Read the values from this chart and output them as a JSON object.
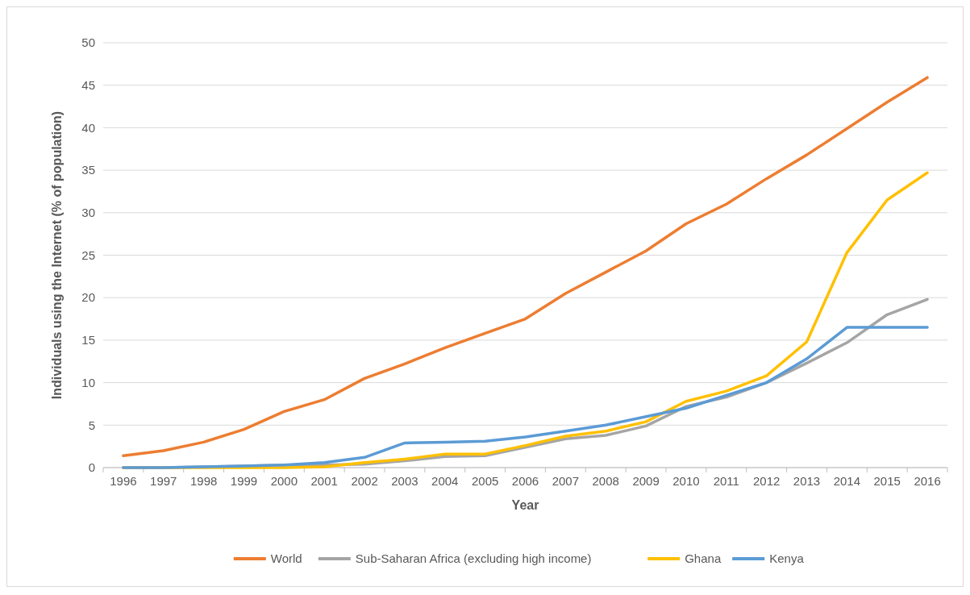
{
  "chart_data": {
    "type": "line",
    "xlabel": "Year",
    "ylabel": "Individuals using the Internet (% of population)",
    "categories": [
      "1996",
      "1997",
      "1998",
      "1999",
      "2000",
      "2001",
      "2002",
      "2003",
      "2004",
      "2005",
      "2006",
      "2007",
      "2008",
      "2009",
      "2010",
      "2011",
      "2012",
      "2013",
      "2014",
      "2015",
      "2016"
    ],
    "series": [
      {
        "name": "World",
        "color": "#ed7d31",
        "values": [
          1.4,
          2.0,
          3.0,
          4.5,
          6.6,
          8.0,
          10.5,
          12.2,
          14.1,
          15.8,
          17.5,
          20.5,
          23.0,
          25.5,
          28.7,
          31.0,
          34.0,
          36.8,
          39.9,
          43.0,
          45.9
        ]
      },
      {
        "name": "Sub-Saharan Africa (excluding high income)",
        "color": "#a5a5a5",
        "values": [
          0,
          0,
          0.1,
          0.2,
          0.3,
          0.3,
          0.4,
          0.8,
          1.3,
          1.4,
          2.4,
          3.4,
          3.8,
          4.9,
          7.2,
          8.3,
          10.0,
          12.3,
          14.7,
          18.0,
          19.8
        ]
      },
      {
        "name": "Ghana",
        "color": "#ffc000",
        "values": [
          0,
          0,
          0,
          0,
          0,
          0.1,
          0.6,
          1.0,
          1.6,
          1.6,
          2.6,
          3.7,
          4.3,
          5.4,
          7.8,
          9.0,
          10.8,
          14.8,
          25.3,
          31.5,
          34.7
        ]
      },
      {
        "name": "Kenya",
        "color": "#5b9bd5",
        "values": [
          0,
          0,
          0.1,
          0.2,
          0.3,
          0.6,
          1.2,
          2.9,
          3.0,
          3.1,
          3.6,
          4.3,
          5.0,
          6.0,
          7.0,
          8.5,
          10.0,
          12.8,
          16.5,
          16.5,
          16.5
        ]
      }
    ],
    "ylim": [
      0,
      50
    ],
    "yticks": [
      0,
      5,
      10,
      15,
      20,
      25,
      30,
      35,
      40,
      45,
      50
    ],
    "grid": "y",
    "legend": "bottom",
    "marker": "none",
    "line_style": "solid"
  }
}
